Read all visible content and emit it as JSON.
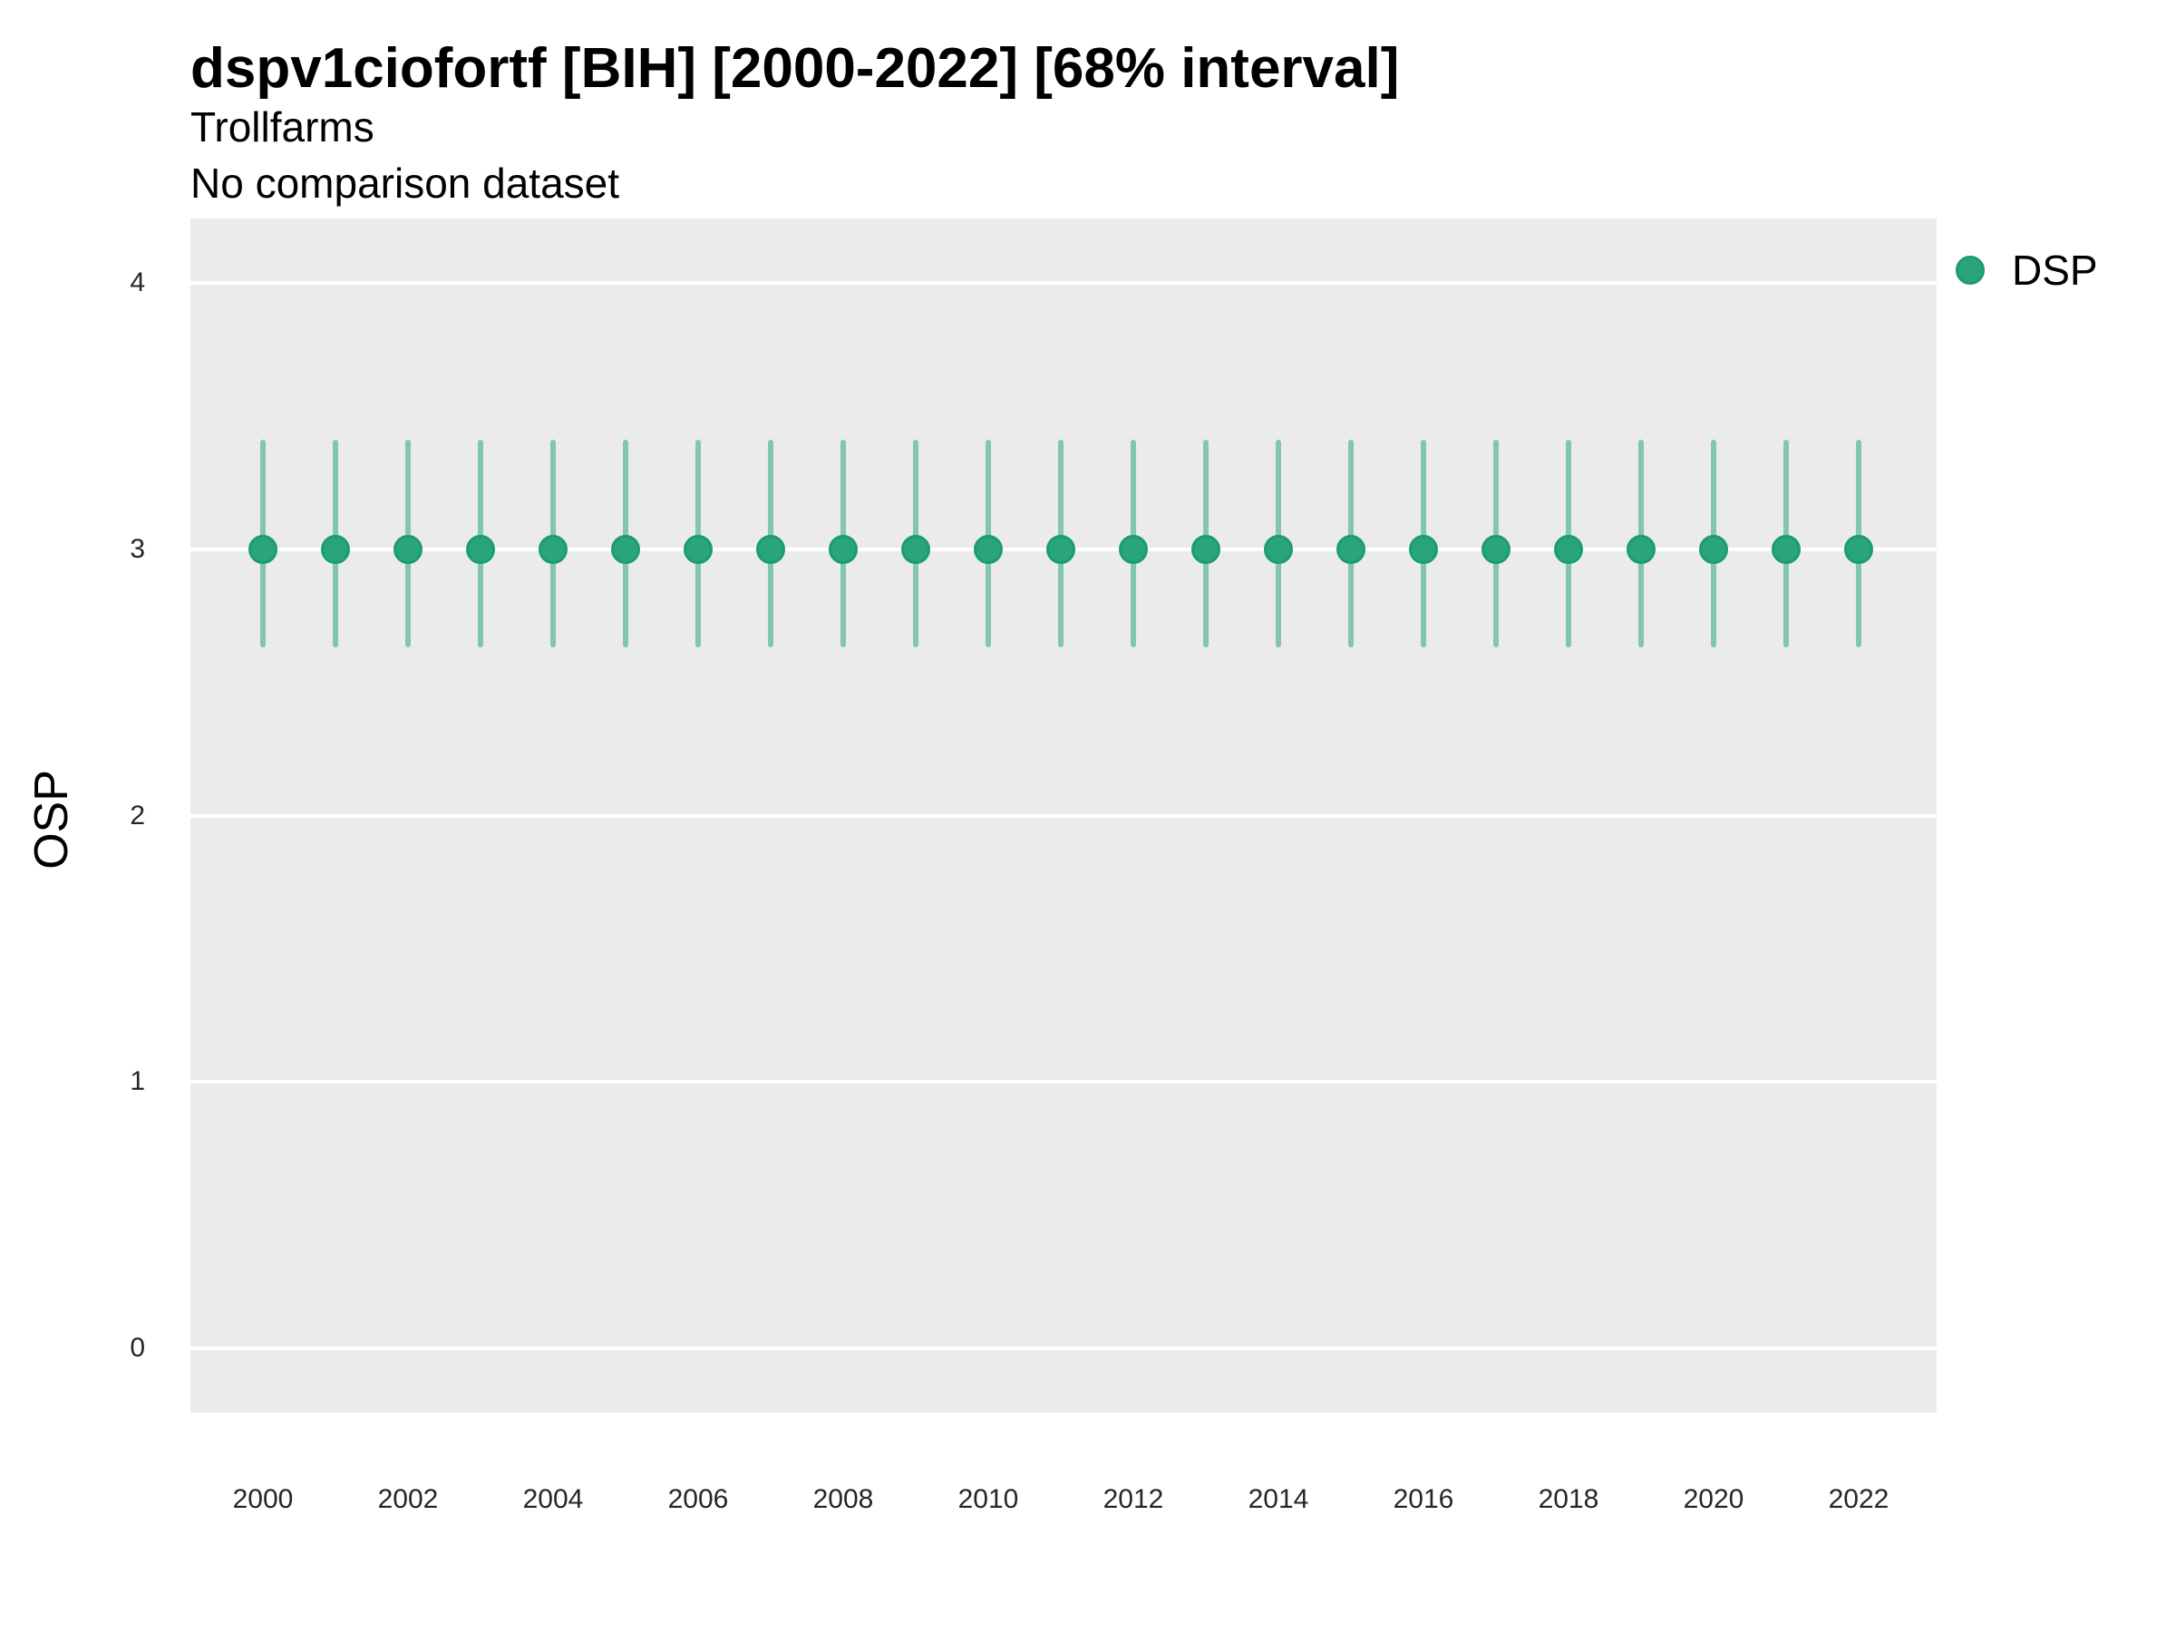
{
  "header": {
    "title": "dspv1ciofortf [BIH] [2000-2022] [68% interval]",
    "subtitle": "Trollfarms",
    "comparison_note": "No comparison dataset"
  },
  "legend": {
    "position": "right-top",
    "items": [
      {
        "label": "DSP",
        "color": "#2AA57B"
      }
    ]
  },
  "chart_data": {
    "type": "scatter",
    "title": "dspv1ciofortf [BIH] [2000-2022] [68% interval]",
    "subtitle": "Trollfarms",
    "note": "No comparison dataset",
    "xlabel": "",
    "ylabel": "OSP",
    "interval_label": "68% interval",
    "x": [
      2000,
      2001,
      2002,
      2003,
      2004,
      2005,
      2006,
      2007,
      2008,
      2009,
      2010,
      2011,
      2012,
      2013,
      2014,
      2015,
      2016,
      2017,
      2018,
      2019,
      2020,
      2021,
      2022
    ],
    "series": [
      {
        "name": "DSP",
        "values": [
          3,
          3,
          3,
          3,
          3,
          3,
          3,
          3,
          3,
          3,
          3,
          3,
          3,
          3,
          3,
          3,
          3,
          3,
          3,
          3,
          3,
          3,
          3
        ],
        "interval_low": [
          2.63,
          2.63,
          2.63,
          2.63,
          2.63,
          2.63,
          2.63,
          2.63,
          2.63,
          2.63,
          2.63,
          2.63,
          2.63,
          2.63,
          2.63,
          2.63,
          2.63,
          2.63,
          2.63,
          2.63,
          2.63,
          2.63,
          2.63
        ],
        "interval_high": [
          3.41,
          3.41,
          3.41,
          3.41,
          3.41,
          3.41,
          3.41,
          3.41,
          3.41,
          3.41,
          3.41,
          3.41,
          3.41,
          3.41,
          3.41,
          3.41,
          3.41,
          3.41,
          3.41,
          3.41,
          3.41,
          3.41,
          3.41
        ]
      }
    ],
    "x_ticks": [
      2000,
      2002,
      2004,
      2006,
      2008,
      2010,
      2012,
      2014,
      2016,
      2018,
      2020,
      2022
    ],
    "y_ticks": [
      0,
      1,
      2,
      3,
      4
    ],
    "xlim": [
      1999,
      2023.075
    ],
    "ylim": [
      -0.2425,
      4.2425
    ],
    "grid": "horizontal-major-only",
    "legend_position": "right-top",
    "style": {
      "panel_bg": "#EBEBEB",
      "grid_color": "#FFFFFF",
      "point_fill": "#2AA57B",
      "point_stroke": "#1B9C72",
      "interval_color": "#82C6AD",
      "text_color": "#000000",
      "tick_text_color": "#262626"
    }
  }
}
